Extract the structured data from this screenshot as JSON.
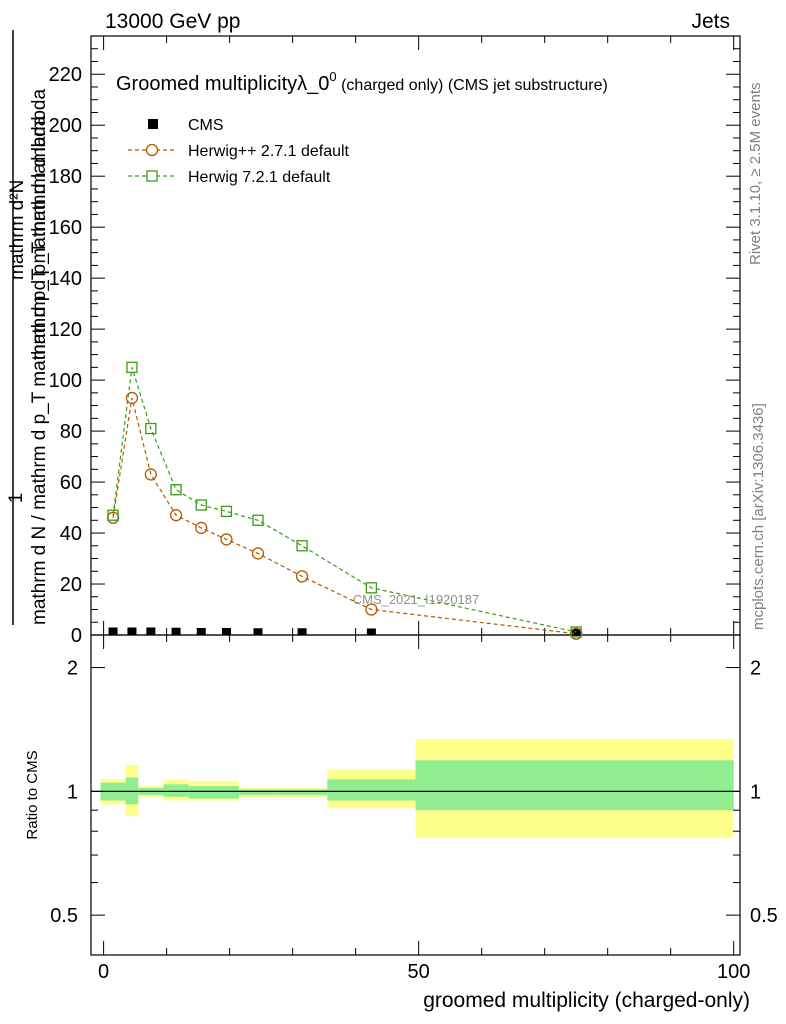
{
  "header": {
    "left": "13000 GeV pp",
    "right": "Jets"
  },
  "side_text": {
    "rivet": "Rivet 3.1.10, ≥ 2.5M events",
    "mcplots": "mcplots.cern.ch [arXiv:1306.3436]"
  },
  "watermark": "CMS_2021_I1920187",
  "chart_data": [
    {
      "type": "line",
      "title": "Groomed multiplicityλ_0⁰ (charged only) (CMS jet substructure)",
      "title_parts": {
        "main": "Groomed multiplicityλ_0",
        "sup": "0",
        "tail": " (charged only) (CMS jet substructure)"
      },
      "ylabel": "1 / mathrm d N / mathrm d p_T mathrm d p_T mathrm d lambda mathrm d²N",
      "ylabel_parts": {
        "numerator": "mathrm d²N",
        "fraction_top_lines": [
          "mathrm d²N",
          "mathrm d p_T mathrm d lambda"
        ],
        "prefix": "1",
        "denominator": "mathrm d N / mathrm d p_T mathrm d p_T mathrm d lambda"
      },
      "ylim": [
        0,
        235
      ],
      "xlim": [
        -2,
        101
      ],
      "yticks": [
        0,
        20,
        40,
        60,
        80,
        100,
        120,
        140,
        160,
        180,
        200,
        220
      ],
      "legend_position": "top-left",
      "series": [
        {
          "name": "CMS",
          "marker": "filled-square",
          "color": "#000000",
          "x": [
            1.5,
            4.5,
            7.5,
            11.5,
            15.5,
            19.5,
            24.5,
            31.5,
            42.5,
            75
          ],
          "y": [
            0.6,
            0.6,
            0.6,
            0.5,
            0.4,
            0.4,
            0.3,
            0.3,
            0.2,
            0.05
          ]
        },
        {
          "name": "Herwig++ 2.7.1 default",
          "marker": "open-circle",
          "color": "#b35900",
          "x": [
            1.5,
            4.5,
            7.5,
            11.5,
            15.5,
            19.5,
            24.5,
            31.5,
            42.5,
            75
          ],
          "y": [
            46,
            93,
            63,
            47,
            42,
            37.5,
            32,
            23,
            10,
            0.5
          ]
        },
        {
          "name": "Herwig 7.2.1 default",
          "marker": "open-square",
          "color": "#3a9a1a",
          "x": [
            1.5,
            4.5,
            7.5,
            11.5,
            15.5,
            19.5,
            24.5,
            31.5,
            42.5,
            75
          ],
          "y": [
            47,
            105,
            81,
            57,
            51,
            48.5,
            45,
            35,
            18.5,
            1.2
          ]
        }
      ]
    },
    {
      "type": "area",
      "ylabel": "Ratio to CMS",
      "xlabel": "groomed multiplicity (charged-only)",
      "ylim": [
        0.4,
        2.4
      ],
      "y_scale": "log",
      "yticks": [
        0.5,
        1,
        2
      ],
      "xticks": [
        0,
        50,
        100
      ],
      "xlim": [
        -2,
        101
      ],
      "reference": 1.0,
      "bins": [
        {
          "x": [
            -0.5,
            3.5
          ],
          "stat": [
            0.95,
            1.05
          ],
          "total": [
            0.93,
            1.07
          ]
        },
        {
          "x": [
            3.5,
            5.5
          ],
          "stat": [
            0.93,
            1.08
          ],
          "total": [
            0.87,
            1.16
          ]
        },
        {
          "x": [
            5.5,
            9.5
          ],
          "stat": [
            0.98,
            1.02
          ],
          "total": [
            0.97,
            1.03
          ]
        },
        {
          "x": [
            9.5,
            13.5
          ],
          "stat": [
            0.97,
            1.04
          ],
          "total": [
            0.95,
            1.07
          ]
        },
        {
          "x": [
            13.5,
            17.5
          ],
          "stat": [
            0.96,
            1.03
          ],
          "total": [
            0.95,
            1.06
          ]
        },
        {
          "x": [
            17.5,
            21.5
          ],
          "stat": [
            0.96,
            1.03
          ],
          "total": [
            0.95,
            1.06
          ]
        },
        {
          "x": [
            21.5,
            27.5
          ],
          "stat": [
            0.98,
            1.01
          ],
          "total": [
            0.97,
            1.02
          ]
        },
        {
          "x": [
            27.5,
            35.5
          ],
          "stat": [
            0.98,
            1.01
          ],
          "total": [
            0.97,
            1.02
          ]
        },
        {
          "x": [
            35.5,
            49.5
          ],
          "stat": [
            0.95,
            1.07
          ],
          "total": [
            0.91,
            1.13
          ]
        },
        {
          "x": [
            49.5,
            100
          ],
          "stat": [
            0.9,
            1.19
          ],
          "total": [
            0.77,
            1.34
          ]
        }
      ],
      "colors": {
        "stat": "#90ee90",
        "total": "#ffff8c",
        "reference": "#000000"
      }
    }
  ]
}
